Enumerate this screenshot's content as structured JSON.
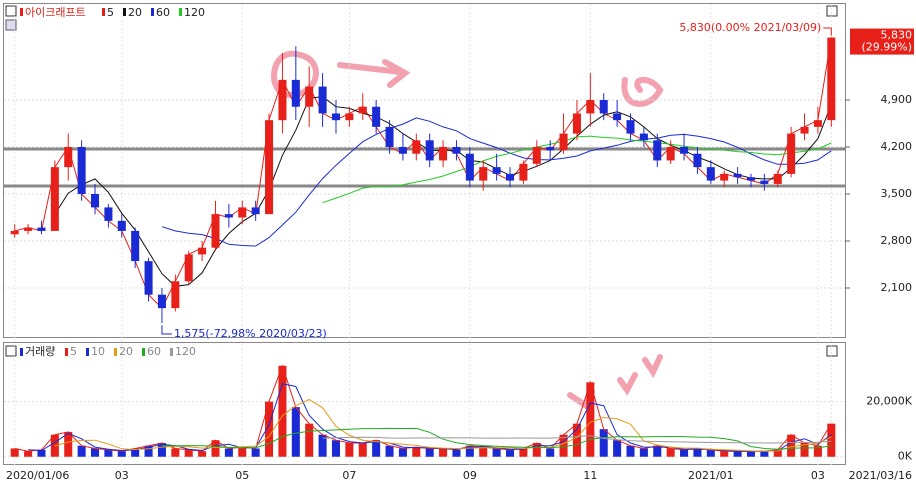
{
  "chart_data": {
    "type": "candlestick",
    "name": "아이크래프트",
    "categories": [
      "2020/01/06",
      null,
      null,
      null,
      null,
      null,
      null,
      null,
      "03",
      null,
      null,
      null,
      null,
      null,
      null,
      null,
      null,
      "05",
      null,
      null,
      null,
      null,
      null,
      null,
      null,
      "07",
      null,
      null,
      null,
      null,
      null,
      null,
      null,
      null,
      "09",
      null,
      null,
      null,
      null,
      null,
      null,
      null,
      null,
      "11",
      null,
      null,
      null,
      null,
      null,
      null,
      null,
      null,
      "2021/01",
      null,
      null,
      null,
      null,
      null,
      null,
      null,
      "03",
      "2021/03/16"
    ],
    "open": [
      2900,
      2950,
      3000,
      2950,
      3900,
      4200,
      3500,
      3300,
      3100,
      2950,
      2500,
      2000,
      1800,
      2200,
      2600,
      2700,
      3200,
      3150,
      3300,
      3200,
      4600,
      5200,
      4800,
      5100,
      4700,
      4600,
      4700,
      4800,
      4500,
      4200,
      4100,
      4300,
      4000,
      4200,
      4100,
      3700,
      3900,
      3800,
      3700,
      3950,
      4200,
      4150,
      4400,
      4700,
      4900,
      4700,
      4600,
      4400,
      4300,
      4000,
      4200,
      4100,
      3900,
      3700,
      3800,
      3750,
      3700,
      3650,
      3800,
      4400,
      4500,
      4600
    ],
    "high": [
      3050,
      3050,
      3100,
      4000,
      4400,
      4300,
      3650,
      3350,
      3200,
      3000,
      2550,
      2100,
      2300,
      2650,
      2800,
      3400,
      3350,
      3400,
      3400,
      4700,
      5600,
      5700,
      5400,
      5300,
      4900,
      4800,
      5000,
      4900,
      4600,
      4400,
      4400,
      4400,
      4300,
      4300,
      4200,
      4000,
      4100,
      3900,
      4000,
      4300,
      4300,
      4700,
      4900,
      5300,
      5000,
      4900,
      4700,
      4500,
      4400,
      4300,
      4400,
      4200,
      4000,
      3850,
      3900,
      3800,
      3800,
      3850,
      4500,
      4700,
      4800,
      5830
    ],
    "low": [
      2850,
      2900,
      2900,
      2950,
      3700,
      3400,
      3200,
      3000,
      2850,
      2400,
      1900,
      1575,
      1750,
      2150,
      2500,
      2650,
      3000,
      3050,
      3100,
      3200,
      4400,
      4600,
      4500,
      4500,
      4400,
      4500,
      4600,
      4400,
      4100,
      4000,
      4000,
      3900,
      3900,
      4000,
      3600,
      3550,
      3700,
      3600,
      3650,
      3900,
      4000,
      4100,
      4300,
      4500,
      4600,
      4500,
      4300,
      4200,
      3900,
      3950,
      4000,
      3800,
      3650,
      3600,
      3650,
      3600,
      3550,
      3600,
      3750,
      4300,
      4400,
      4500
    ],
    "close": [
      2950,
      3000,
      2950,
      3900,
      4200,
      3500,
      3300,
      3100,
      2950,
      2500,
      2000,
      1800,
      2200,
      2600,
      2700,
      3200,
      3150,
      3300,
      3200,
      4600,
      5200,
      4800,
      5100,
      4700,
      4600,
      4700,
      4800,
      4500,
      4200,
      4100,
      4300,
      4000,
      4200,
      4100,
      3700,
      3900,
      3800,
      3700,
      3950,
      4200,
      4150,
      4400,
      4700,
      4900,
      4700,
      4600,
      4400,
      4300,
      4000,
      4200,
      4100,
      3900,
      3700,
      3800,
      3750,
      3700,
      3650,
      3800,
      4400,
      4500,
      4600,
      5830
    ],
    "up_color": "#e8201a",
    "down_color": "#1a2bd6",
    "ma": {
      "periods": [
        5,
        20,
        60,
        120
      ],
      "colors": [
        "#e8201a",
        "#111111",
        "#1a2bd6",
        "#22cc22"
      ]
    },
    "ylim": [
      1355,
      6062
    ],
    "yticks": [
      {
        "value": 2100,
        "label": "2,100"
      },
      {
        "value": 2800,
        "label": "2,800"
      },
      {
        "value": 3500,
        "label": "3,500"
      },
      {
        "value": 4200,
        "label": "4,200"
      },
      {
        "value": 4900,
        "label": "4,900"
      }
    ],
    "hlines": [
      4170,
      3620
    ],
    "max_label": "5,830(0.00% 2021/03/09)",
    "min_label": "1,575(-72.98% 2020/03/23)",
    "price_label": "5,830",
    "change_label": "(29.99%)",
    "volume": {
      "name": "거래량",
      "values": [
        3000,
        2000,
        2500,
        8000,
        9000,
        4000,
        3000,
        2500,
        2000,
        3000,
        4000,
        5000,
        3000,
        2500,
        2000,
        6000,
        3000,
        3500,
        3000,
        20000,
        33000,
        18000,
        12000,
        8000,
        6000,
        5000,
        5000,
        6000,
        4000,
        3000,
        3500,
        3000,
        3000,
        2500,
        4000,
        3500,
        3000,
        2500,
        3000,
        5000,
        3000,
        8000,
        12000,
        27000,
        10000,
        6000,
        4000,
        3000,
        4000,
        3000,
        2500,
        3000,
        2500,
        2000,
        2000,
        2000,
        2000,
        2500,
        8000,
        5000,
        4000,
        12000
      ],
      "ma": {
        "periods": [
          5,
          10,
          20,
          60,
          120
        ],
        "colors": [
          "#e8201a",
          "#1a2bd6",
          "#e89a1a",
          "#22aa22",
          "#999999"
        ]
      },
      "ylim": [
        -3000,
        38000
      ],
      "yticks": [
        {
          "value": 0,
          "label": "0K"
        },
        {
          "value": 20000,
          "label": "20,000K"
        }
      ]
    }
  }
}
